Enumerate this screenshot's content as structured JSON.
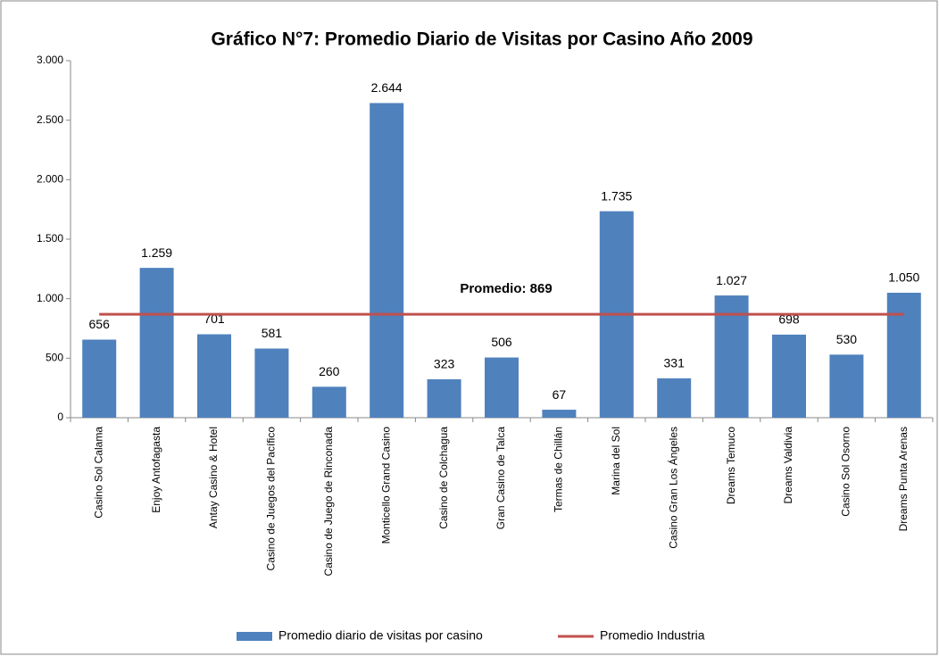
{
  "chart_data": {
    "type": "bar",
    "title": "Gráfico N°7: Promedio Diario de Visitas por Casino Año 2009",
    "annotation": "Promedio: 869",
    "categories": [
      "Casino Sol Calama",
      "Enjoy Antofagasta",
      "Antay Casino & Hotel",
      "Casino de Juegos del Pacífico",
      "Casino de Juego de Rinconada",
      "Monticello Grand Casino",
      "Casino de Colchagua",
      "Gran Casino de Talca",
      "Termas de Chillán",
      "Marina del Sol",
      "Casino Gran Los Ángeles",
      "Dreams Temuco",
      "Dreams Valdivia",
      "Casino Sol Osorno",
      "Dreams Punta Arenas"
    ],
    "series": [
      {
        "name": "Promedio diario de visitas por casino",
        "type": "bar",
        "color": "#4f81bd",
        "values": [
          656,
          1259,
          701,
          581,
          260,
          2644,
          323,
          506,
          67,
          1735,
          331,
          1027,
          698,
          530,
          1050
        ],
        "value_labels": [
          "656",
          "1.259",
          "701",
          "581",
          "260",
          "2.644",
          "323",
          "506",
          "67",
          "1.735",
          "331",
          "1.027",
          "698",
          "530",
          "1.050"
        ]
      },
      {
        "name": "Promedio Industria",
        "type": "line",
        "color": "#c0504d",
        "values": [
          869,
          869,
          869,
          869,
          869,
          869,
          869,
          869,
          869,
          869,
          869,
          869,
          869,
          869,
          869
        ]
      }
    ],
    "ylim": [
      0,
      3000
    ],
    "yticks": [
      0,
      500,
      {
        "value": 1000,
        "label": "1.000"
      },
      {
        "value": 1500,
        "label": "1.500"
      },
      {
        "value": 2000,
        "label": "2.000"
      },
      {
        "value": 2500,
        "label": "2.500"
      },
      {
        "value": 3000,
        "label": "3.000"
      }
    ],
    "grid": false,
    "legend": "bottom"
  }
}
